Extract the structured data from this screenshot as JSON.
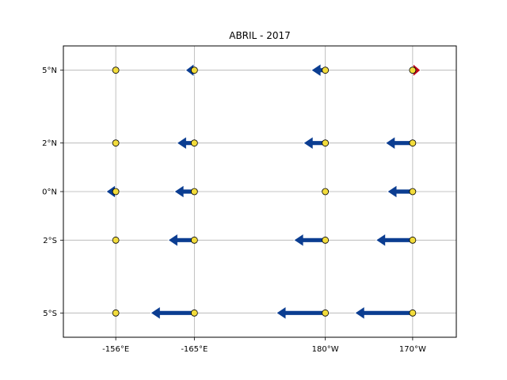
{
  "chart_data": {
    "type": "quiver",
    "title": "ABRIL - 2017",
    "xlabel": "",
    "ylabel": "",
    "grid": true,
    "x_categories": [
      "-156°E",
      "-165°E",
      "180°W",
      "170°W"
    ],
    "x_positions_deg": [
      156,
      165,
      180,
      190
    ],
    "xlim": [
      150,
      195
    ],
    "y_categories": [
      "5°S",
      "2°S",
      "0°N",
      "2°N",
      "5°N"
    ],
    "y_values": [
      -5,
      -2,
      0,
      2,
      5
    ],
    "ylim": [
      -6,
      6
    ],
    "vector_unit": "degrees longitude",
    "colors": {
      "westward": "#0b3d91",
      "eastward": "#c0001a",
      "buoy": "#f2dc3c",
      "grid": "#b0b0b0"
    },
    "vectors": [
      {
        "x": "-156°E",
        "y": "5°N",
        "u": 0
      },
      {
        "x": "-156°E",
        "y": "2°N",
        "u": 0
      },
      {
        "x": "-156°E",
        "y": "0°N",
        "u": -1.1
      },
      {
        "x": "-156°E",
        "y": "2°S",
        "u": 0
      },
      {
        "x": "-156°E",
        "y": "5°S",
        "u": 0
      },
      {
        "x": "-165°E",
        "y": "5°N",
        "u": -1.0
      },
      {
        "x": "-165°E",
        "y": "2°N",
        "u": -2.0
      },
      {
        "x": "-165°E",
        "y": "0°N",
        "u": -2.3
      },
      {
        "x": "-165°E",
        "y": "2°S",
        "u": -3.0
      },
      {
        "x": "-165°E",
        "y": "5°S",
        "u": -5.0
      },
      {
        "x": "180°W",
        "y": "5°N",
        "u": -1.6
      },
      {
        "x": "180°W",
        "y": "2°N",
        "u": -2.5
      },
      {
        "x": "180°W",
        "y": "0°N",
        "u": 0
      },
      {
        "x": "180°W",
        "y": "2°S",
        "u": -3.6
      },
      {
        "x": "180°W",
        "y": "5°S",
        "u": -5.6
      },
      {
        "x": "170°W",
        "y": "5°N",
        "u": 0.9
      },
      {
        "x": "170°W",
        "y": "2°N",
        "u": -3.1
      },
      {
        "x": "170°W",
        "y": "0°N",
        "u": -2.9
      },
      {
        "x": "170°W",
        "y": "2°S",
        "u": -4.2
      },
      {
        "x": "170°W",
        "y": "5°S",
        "u": -6.6
      }
    ]
  }
}
